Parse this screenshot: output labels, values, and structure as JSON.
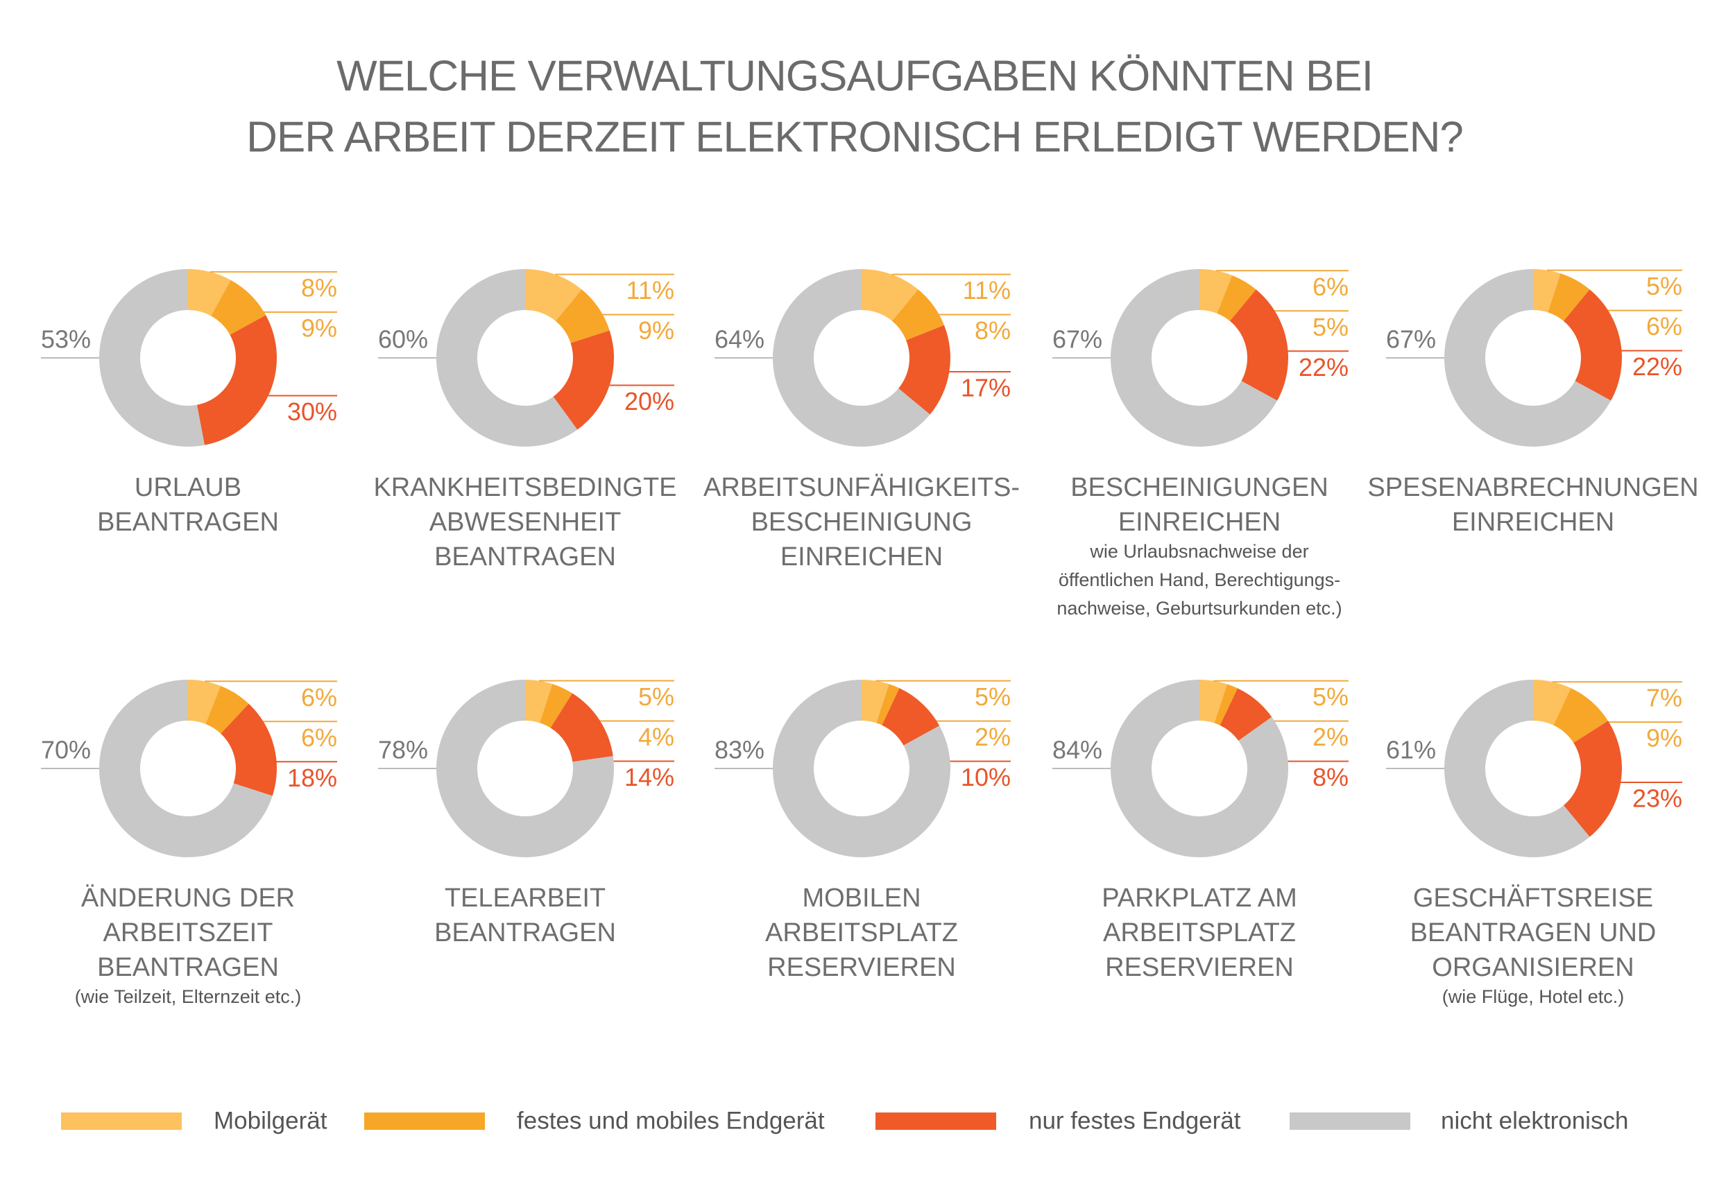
{
  "title_lines": [
    "WELCHE VERWALTUNGSAUFGABEN KÖNNTEN BEI",
    "DER ARBEIT DERZEIT ELEKTRONISCH ERLEDIGT WERDEN?"
  ],
  "legend": [
    {
      "name": "Mobilgerät",
      "color": "#fdc15e"
    },
    {
      "name": "festes und mobiles Endgerät",
      "color": "#f8a627"
    },
    {
      "name": "nur festes Endgerät",
      "color": "#ef5a28"
    },
    {
      "name": "nicht elektronisch",
      "color": "#c8c8c8"
    }
  ],
  "chart_data": [
    {
      "type": "donut",
      "label_lines": [
        "URLAUB",
        "BEANTRAGEN"
      ],
      "values": [
        8,
        9,
        30,
        53
      ],
      "value_labels": [
        "8%",
        "9%",
        "30%",
        "53%"
      ]
    },
    {
      "type": "donut",
      "label_lines": [
        "KRANKHEITSBEDINGTE",
        "ABWESENHEIT",
        "BEANTRAGEN"
      ],
      "values": [
        11,
        9,
        20,
        60
      ],
      "value_labels": [
        "11%",
        "9%",
        "20%",
        "60%"
      ]
    },
    {
      "type": "donut",
      "label_lines": [
        "ARBEITSUNFÄHIGKEITS-",
        "BESCHEINIGUNG",
        "EINREICHEN"
      ],
      "values": [
        11,
        8,
        17,
        64
      ],
      "value_labels": [
        "11%",
        "8%",
        "17%",
        "64%"
      ]
    },
    {
      "type": "donut",
      "label_lines": [
        "BESCHEINIGUNGEN",
        "EINREICHEN"
      ],
      "note_lines": [
        "wie Urlaubsnachweise der",
        "öffentlichen Hand, Berechtigungs-",
        "nachweise, Geburtsurkunden etc.)"
      ],
      "values": [
        6,
        5,
        22,
        67
      ],
      "value_labels": [
        "6%",
        "5%",
        "22%",
        "67%"
      ]
    },
    {
      "type": "donut",
      "label_lines": [
        "SPESENABRECHNUNGEN",
        "EINREICHEN"
      ],
      "values": [
        5,
        6,
        22,
        67
      ],
      "value_labels": [
        "5%",
        "6%",
        "22%",
        "67%"
      ]
    },
    {
      "type": "donut",
      "label_lines": [
        "ÄNDERUNG DER",
        "ARBEITSZEIT",
        "BEANTRAGEN"
      ],
      "note_lines": [
        "(wie Teilzeit, Elternzeit etc.)"
      ],
      "values": [
        6,
        6,
        18,
        70
      ],
      "value_labels": [
        "6%",
        "6%",
        "18%",
        "70%"
      ]
    },
    {
      "type": "donut",
      "label_lines": [
        "TELEARBEIT",
        "BEANTRAGEN"
      ],
      "values": [
        5,
        4,
        14,
        78
      ],
      "value_labels": [
        "5%",
        "4%",
        "14%",
        "78%"
      ]
    },
    {
      "type": "donut",
      "label_lines": [
        "MOBILEN",
        "ARBEITSPLATZ",
        "RESERVIEREN"
      ],
      "values": [
        5,
        2,
        10,
        83
      ],
      "value_labels": [
        "5%",
        "2%",
        "10%",
        "83%"
      ]
    },
    {
      "type": "donut",
      "label_lines": [
        "PARKPLATZ AM",
        "ARBEITSPLATZ",
        "RESERVIEREN"
      ],
      "values": [
        5,
        2,
        8,
        84
      ],
      "value_labels": [
        "5%",
        "2%",
        "8%",
        "84%"
      ]
    },
    {
      "type": "donut",
      "label_lines": [
        "GESCHÄFTSREISE",
        "BEANTRAGEN UND",
        "ORGANISIEREN"
      ],
      "note_lines": [
        "(wie Flüge, Hotel etc.)"
      ],
      "values": [
        7,
        9,
        23,
        61
      ],
      "value_labels": [
        "7%",
        "9%",
        "23%",
        "61%"
      ]
    }
  ]
}
